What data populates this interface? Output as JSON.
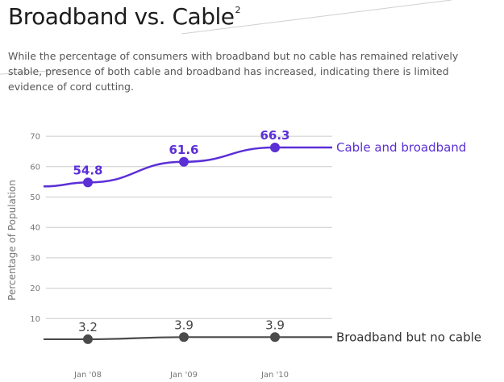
{
  "header": {
    "title": "Broadband vs. Cable",
    "footnote": "2",
    "subtitle": "While the percentage of consumers with broadband but no cable has remained relatively stable, presence of both cable and broadband has increased, indicating there is limited evidence of cord cutting."
  },
  "chart_data": {
    "type": "line",
    "title": "",
    "xlabel": "",
    "ylabel": "Percentage of Population",
    "categories": [
      "Jan '08",
      "Jan '09",
      "Jan '10"
    ],
    "yticks": [
      10,
      20,
      30,
      40,
      50,
      60,
      70
    ],
    "ylim": [
      0,
      72
    ],
    "grid": true,
    "series": [
      {
        "name": "Cable and broadband",
        "values": [
          54.8,
          61.6,
          66.3
        ],
        "labels": [
          "54.8",
          "61.6",
          "66.3"
        ],
        "color": "#5b2fd6"
      },
      {
        "name": "Broadband but no cable",
        "values": [
          3.2,
          3.9,
          3.9
        ],
        "labels": [
          "3.2",
          "3.9",
          "3.9"
        ],
        "color": "#4a4a4a"
      }
    ]
  }
}
